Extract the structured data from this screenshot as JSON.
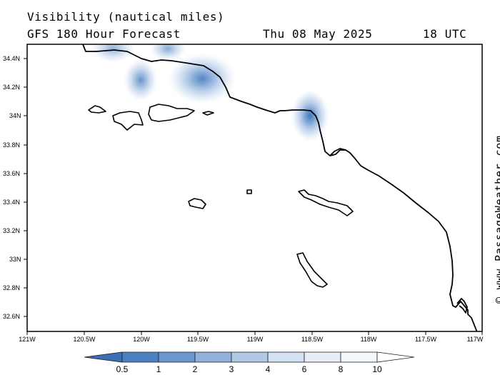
{
  "header": {
    "title": "Visibility (nautical miles)",
    "model": "GFS 180 Hour Forecast",
    "date": "Thu 08 May 2025",
    "time": "18 UTC"
  },
  "credit": "© www.PassageWeather.com",
  "axes": {
    "lat_labels": [
      "34.4N",
      "34.2N",
      "34N",
      "33.8N",
      "33.6N",
      "33.4N",
      "33.2N",
      "33N",
      "32.8N",
      "32.6N"
    ],
    "lon_labels": [
      "121W",
      "120.5W",
      "120W",
      "119.5W",
      "119W",
      "118.5W",
      "118W",
      "117.5W",
      "117W"
    ]
  },
  "colorbar": {
    "labels": [
      "0.5",
      "1",
      "2",
      "3",
      "4",
      "6",
      "8",
      "10"
    ],
    "colors": [
      "#3a6fb5",
      "#4a80c2",
      "#6a98cf",
      "#8fb1dc",
      "#b1c9e7",
      "#d3e1f2",
      "#eef3fa",
      "#ffffff"
    ]
  },
  "map": {
    "lat_range": [
      32.5,
      34.5
    ],
    "lon_range": [
      -121,
      -117
    ],
    "fog_patches": [
      {
        "name": "point-conception-fog",
        "lon": -120.28,
        "lat": 34.47,
        "level": 0.35
      },
      {
        "name": "santa-barbara-fog-1",
        "lon": -120.0,
        "lat": 34.25,
        "level": 0.6
      },
      {
        "name": "santa-barbara-fog-2",
        "lon": -119.78,
        "lat": 34.48,
        "level": 0.45
      },
      {
        "name": "ventura-fog",
        "lon": -119.5,
        "lat": 34.26,
        "level": 0.75
      },
      {
        "name": "los-angeles-fog",
        "lon": -118.51,
        "lat": 33.99,
        "level": 0.9
      }
    ]
  }
}
